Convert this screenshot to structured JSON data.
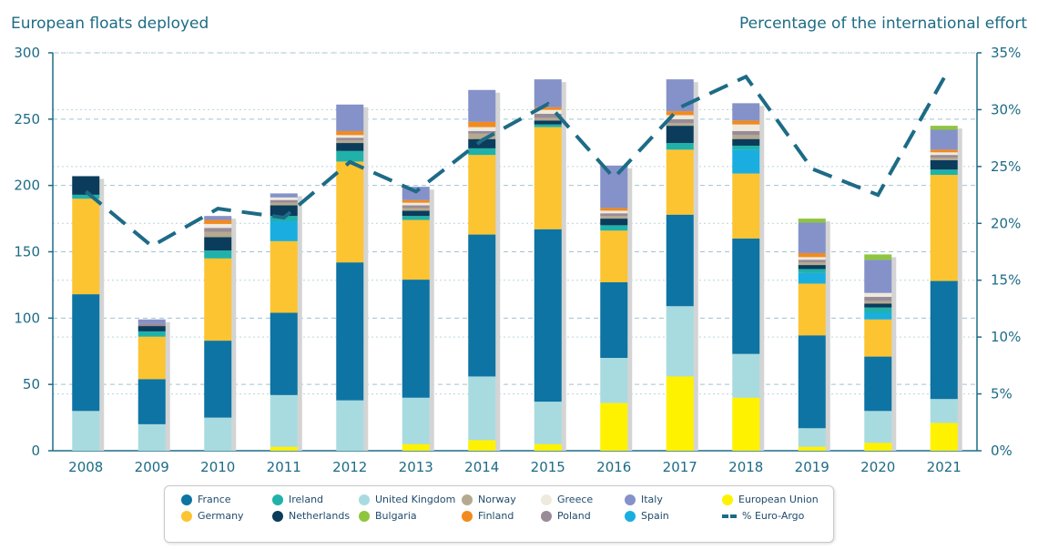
{
  "left_title": "European floats deployed",
  "right_title": "Percentage of the international effort",
  "chart_data": {
    "type": "bar",
    "stacked": true,
    "title": "",
    "xlabel": "",
    "ylabel": "European floats deployed",
    "y2label": "Percentage of the international effort",
    "ylim": [
      0,
      300
    ],
    "y_ticks": [
      "0",
      "50",
      "100",
      "150",
      "200",
      "250",
      "300"
    ],
    "y2lim": [
      0,
      35
    ],
    "y2_ticks": [
      "0%",
      "5%",
      "10%",
      "15%",
      "20%",
      "25%",
      "30%",
      "35%"
    ],
    "grid": "horizontal dashed",
    "legend_position": "bottom",
    "categories": [
      "2008",
      "2009",
      "2010",
      "2011",
      "2012",
      "2013",
      "2014",
      "2015",
      "2016",
      "2017",
      "2018",
      "2019",
      "2020",
      "2021"
    ],
    "series": [
      {
        "name": "European Union",
        "color": "#fff200",
        "values": [
          0,
          0,
          0,
          3,
          0,
          5,
          8,
          5,
          36,
          56,
          40,
          3,
          6,
          21
        ]
      },
      {
        "name": "United Kingdom",
        "color": "#a8dbe0",
        "values": [
          30,
          20,
          25,
          39,
          38,
          35,
          48,
          32,
          34,
          53,
          33,
          14,
          24,
          18
        ]
      },
      {
        "name": "France",
        "color": "#0d74a3",
        "values": [
          88,
          34,
          58,
          62,
          104,
          89,
          107,
          130,
          57,
          69,
          87,
          70,
          41,
          89
        ]
      },
      {
        "name": "Germany",
        "color": "#fdc432",
        "values": [
          72,
          32,
          62,
          54,
          76,
          45,
          60,
          77,
          39,
          49,
          49,
          39,
          28,
          80
        ]
      },
      {
        "name": "Spain",
        "color": "#1aaee0",
        "values": [
          0,
          0,
          0,
          15,
          0,
          0,
          0,
          0,
          0,
          0,
          18,
          8,
          5,
          0
        ]
      },
      {
        "name": "Ireland",
        "color": "#20b2aa",
        "values": [
          3,
          4,
          6,
          4,
          8,
          3,
          5,
          2,
          4,
          5,
          3,
          3,
          4,
          4
        ]
      },
      {
        "name": "Netherlands",
        "color": "#0b3c5b",
        "values": [
          14,
          4,
          10,
          8,
          6,
          4,
          7,
          3,
          5,
          13,
          5,
          3,
          3,
          7
        ]
      },
      {
        "name": "Norway",
        "color": "#b5aa8f",
        "values": [
          0,
          0,
          4,
          2,
          2,
          2,
          4,
          2,
          2,
          2,
          3,
          2,
          2,
          2
        ]
      },
      {
        "name": "Poland",
        "color": "#9a8b98",
        "values": [
          0,
          2,
          3,
          2,
          2,
          2,
          2,
          3,
          2,
          3,
          3,
          2,
          3,
          2
        ]
      },
      {
        "name": "Greece",
        "color": "#eeeadd",
        "values": [
          0,
          0,
          3,
          2,
          2,
          2,
          3,
          3,
          2,
          3,
          5,
          2,
          3,
          2
        ]
      },
      {
        "name": "Finland",
        "color": "#f28a1e",
        "values": [
          0,
          0,
          3,
          0,
          3,
          2,
          4,
          2,
          2,
          3,
          3,
          3,
          0,
          2
        ]
      },
      {
        "name": "Italy",
        "color": "#8591c9",
        "values": [
          0,
          3,
          3,
          3,
          20,
          10,
          24,
          21,
          32,
          24,
          13,
          23,
          25,
          15
        ]
      },
      {
        "name": "Bulgaria",
        "color": "#8ec63f",
        "values": [
          0,
          0,
          0,
          0,
          0,
          0,
          0,
          0,
          0,
          0,
          0,
          3,
          4,
          3
        ]
      }
    ],
    "line_series": {
      "name": "% Euro-Argo",
      "color": "#1d6b86",
      "values": [
        22.8,
        18.0,
        21.3,
        20.5,
        25.4,
        22.8,
        27.3,
        30.5,
        24.0,
        30.2,
        32.9,
        24.8,
        22.5,
        32.8
      ]
    }
  },
  "legend_items": [
    {
      "name": "France",
      "color": "#0d74a3",
      "kind": "dot"
    },
    {
      "name": "Germany",
      "color": "#fdc432",
      "kind": "dot"
    },
    {
      "name": "Ireland",
      "color": "#20b2aa",
      "kind": "dot"
    },
    {
      "name": "Netherlands",
      "color": "#0b3c5b",
      "kind": "dot"
    },
    {
      "name": "United Kingdom",
      "color": "#a8dbe0",
      "kind": "dot"
    },
    {
      "name": "Bulgaria",
      "color": "#8ec63f",
      "kind": "dot"
    },
    {
      "name": "Norway",
      "color": "#b5aa8f",
      "kind": "dot"
    },
    {
      "name": "Finland",
      "color": "#f28a1e",
      "kind": "dot"
    },
    {
      "name": "Greece",
      "color": "#eeeadd",
      "kind": "dot"
    },
    {
      "name": "Poland",
      "color": "#9a8b98",
      "kind": "dot"
    },
    {
      "name": "Italy",
      "color": "#8591c9",
      "kind": "dot"
    },
    {
      "name": "Spain",
      "color": "#1aaee0",
      "kind": "dot"
    },
    {
      "name": "European Union",
      "color": "#fff200",
      "kind": "dot"
    },
    {
      "name": "% Euro-Argo",
      "color": "#1d6b86",
      "kind": "dash"
    }
  ]
}
